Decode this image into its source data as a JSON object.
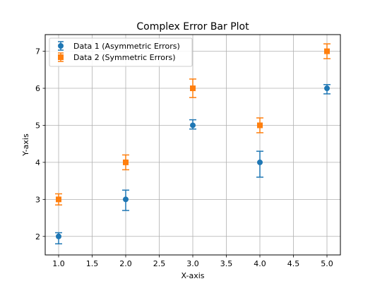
{
  "chart_data": {
    "type": "scatter",
    "title": "Complex Error Bar Plot",
    "xlabel": "X-axis",
    "ylabel": "Y-axis",
    "xlim": [
      0.8,
      5.2
    ],
    "ylim": [
      1.5,
      7.45
    ],
    "xticks": [
      1.0,
      1.5,
      2.0,
      2.5,
      3.0,
      3.5,
      4.0,
      4.5,
      5.0
    ],
    "xtick_labels": [
      "1.0",
      "1.5",
      "2.0",
      "2.5",
      "3.0",
      "3.5",
      "4.0",
      "4.5",
      "5.0"
    ],
    "yticks": [
      2,
      3,
      4,
      5,
      6,
      7
    ],
    "ytick_labels": [
      "2",
      "3",
      "4",
      "5",
      "6",
      "7"
    ],
    "grid": true,
    "legend_position": "top-left",
    "series": [
      {
        "name": "Data 1 (Asymmetric Errors)",
        "marker": "circle",
        "color": "#1f77b4",
        "x": [
          1,
          2,
          3,
          4,
          5
        ],
        "y": [
          2,
          3,
          5,
          4,
          6
        ],
        "yerr_lower": [
          0.2,
          0.3,
          0.1,
          0.4,
          0.15
        ],
        "yerr_upper": [
          0.1,
          0.25,
          0.15,
          0.3,
          0.1
        ]
      },
      {
        "name": "Data 2 (Symmetric Errors)",
        "marker": "square",
        "color": "#ff7f0e",
        "x": [
          1,
          2,
          3,
          4,
          5
        ],
        "y": [
          3,
          4,
          6,
          5,
          7
        ],
        "yerr_lower": [
          0.15,
          0.2,
          0.25,
          0.2,
          0.2
        ],
        "yerr_upper": [
          0.15,
          0.2,
          0.25,
          0.2,
          0.2
        ]
      }
    ]
  }
}
